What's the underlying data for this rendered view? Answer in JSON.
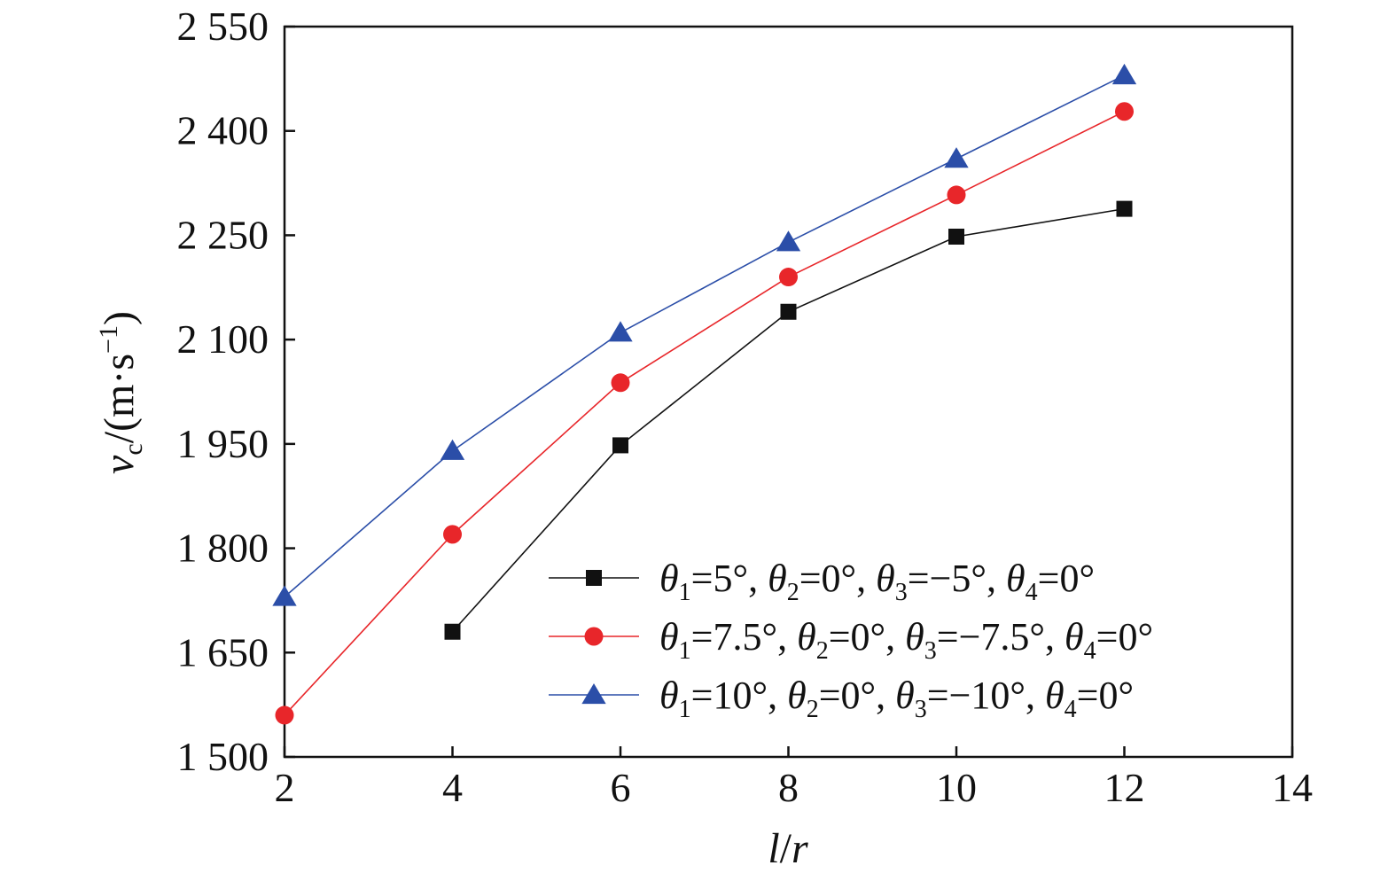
{
  "chart_data": {
    "type": "line",
    "x_axis": {
      "label": {
        "var_l": "l",
        "slash": "/",
        "var_r": "r"
      },
      "min": 2,
      "max": 14,
      "ticks": [
        {
          "value": 2,
          "label": "2"
        },
        {
          "value": 4,
          "label": "4"
        },
        {
          "value": 6,
          "label": "6"
        },
        {
          "value": 8,
          "label": "8"
        },
        {
          "value": 10,
          "label": "10"
        },
        {
          "value": 12,
          "label": "12"
        },
        {
          "value": 14,
          "label": "14"
        }
      ]
    },
    "y_axis": {
      "label": {
        "var": "v",
        "sub": "c",
        "unit_open": "/(m·s",
        "sup": "−1",
        "unit_close": ")"
      },
      "min": 1500,
      "max": 2550,
      "ticks": [
        {
          "value": 1500,
          "label": "1 500"
        },
        {
          "value": 1650,
          "label": "1 650"
        },
        {
          "value": 1800,
          "label": "1 800"
        },
        {
          "value": 1950,
          "label": "1 950"
        },
        {
          "value": 2100,
          "label": "2 100"
        },
        {
          "value": 2250,
          "label": "2 250"
        },
        {
          "value": 2400,
          "label": "2 400"
        },
        {
          "value": 2550,
          "label": "2 550"
        }
      ]
    },
    "grid": false,
    "legend_position": "bottom-right",
    "series": [
      {
        "id": "s1",
        "marker": "square",
        "color": "#111111",
        "legend": {
          "t1": "5°",
          "t2": "0°",
          "t3": "−5°",
          "t4": "0°"
        },
        "points": [
          {
            "x": 4,
            "y": 1680
          },
          {
            "x": 6,
            "y": 1948
          },
          {
            "x": 8,
            "y": 2140
          },
          {
            "x": 10,
            "y": 2248
          },
          {
            "x": 12,
            "y": 2288
          }
        ]
      },
      {
        "id": "s2",
        "marker": "circle",
        "color": "#e8262a",
        "legend": {
          "t1": "7.5°",
          "t2": "0°",
          "t3": "−7.5°",
          "t4": "0°"
        },
        "points": [
          {
            "x": 2,
            "y": 1560
          },
          {
            "x": 4,
            "y": 1820
          },
          {
            "x": 6,
            "y": 2038
          },
          {
            "x": 8,
            "y": 2190
          },
          {
            "x": 10,
            "y": 2308
          },
          {
            "x": 12,
            "y": 2428
          }
        ]
      },
      {
        "id": "s3",
        "marker": "triangle",
        "color": "#2b4ea8",
        "legend": {
          "t1": "10°",
          "t2": "0°",
          "t3": "−10°",
          "t4": "0°"
        },
        "points": [
          {
            "x": 2,
            "y": 1730
          },
          {
            "x": 4,
            "y": 1940
          },
          {
            "x": 6,
            "y": 2110
          },
          {
            "x": 8,
            "y": 2240
          },
          {
            "x": 10,
            "y": 2360
          },
          {
            "x": 12,
            "y": 2480
          }
        ]
      }
    ]
  }
}
